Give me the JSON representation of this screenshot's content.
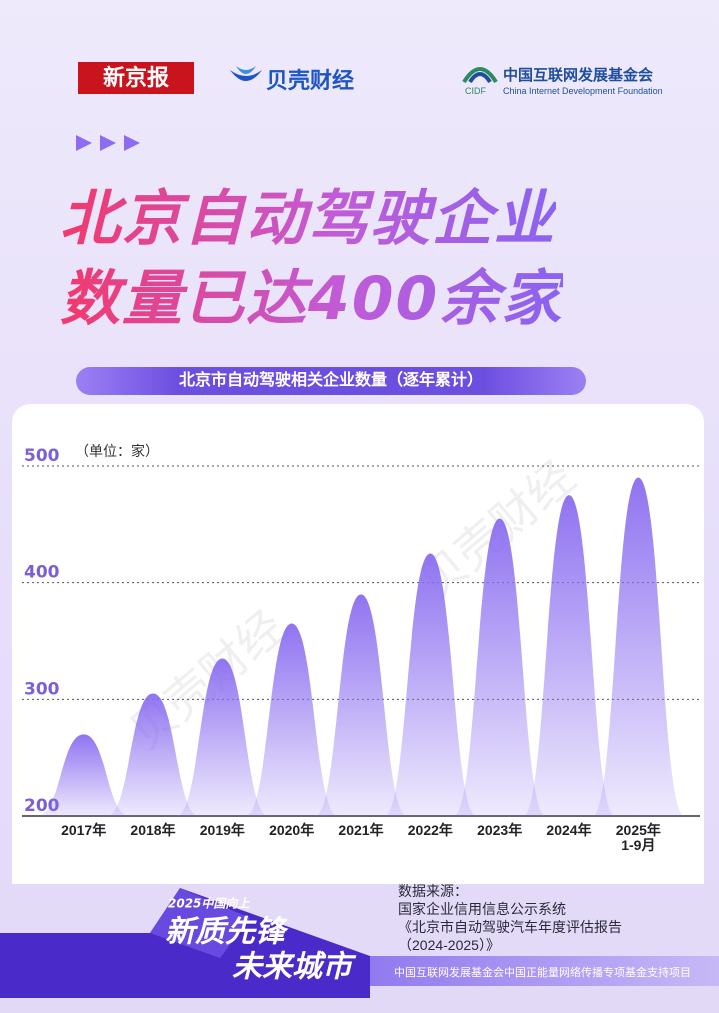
{
  "header": {
    "logo1": "新京报",
    "logo2": "贝壳财经",
    "logo3_cn": "中国互联网发展基金会",
    "logo3_abbr": "CIDF",
    "logo3_en": "China Internet Development Foundation"
  },
  "headline": [
    "北京自动驾驶企业",
    "数量已达400余家"
  ],
  "chart_data": {
    "type": "bell",
    "title": "北京市自动驾驶相关企业数量（逐年累计）",
    "unit": "（单位：家）",
    "categories": [
      "2017年",
      "2018年",
      "2019年",
      "2020年",
      "2021年",
      "2022年",
      "2023年",
      "2024年",
      "2025年\n1-9月"
    ],
    "values": [
      270,
      305,
      335,
      365,
      390,
      425,
      455,
      475,
      490
    ],
    "color": "#8a6cf0",
    "ylim": [
      200,
      500
    ],
    "yticks": [
      200,
      300,
      400,
      500
    ],
    "grid": true
  },
  "watermark": "贝壳财经",
  "source": {
    "label": "数据来源：",
    "lines": [
      "国家企业信用信息公示系统",
      "《北京市自动驾驶汽车年度评估报告\n（2024-2025）》"
    ]
  },
  "badge": {
    "top": "2025中国向上",
    "line1": "新质先锋",
    "line2": "未来城市"
  },
  "footer": "中国互联网发展基金会中国正能量网络传播专项基金支持项目"
}
